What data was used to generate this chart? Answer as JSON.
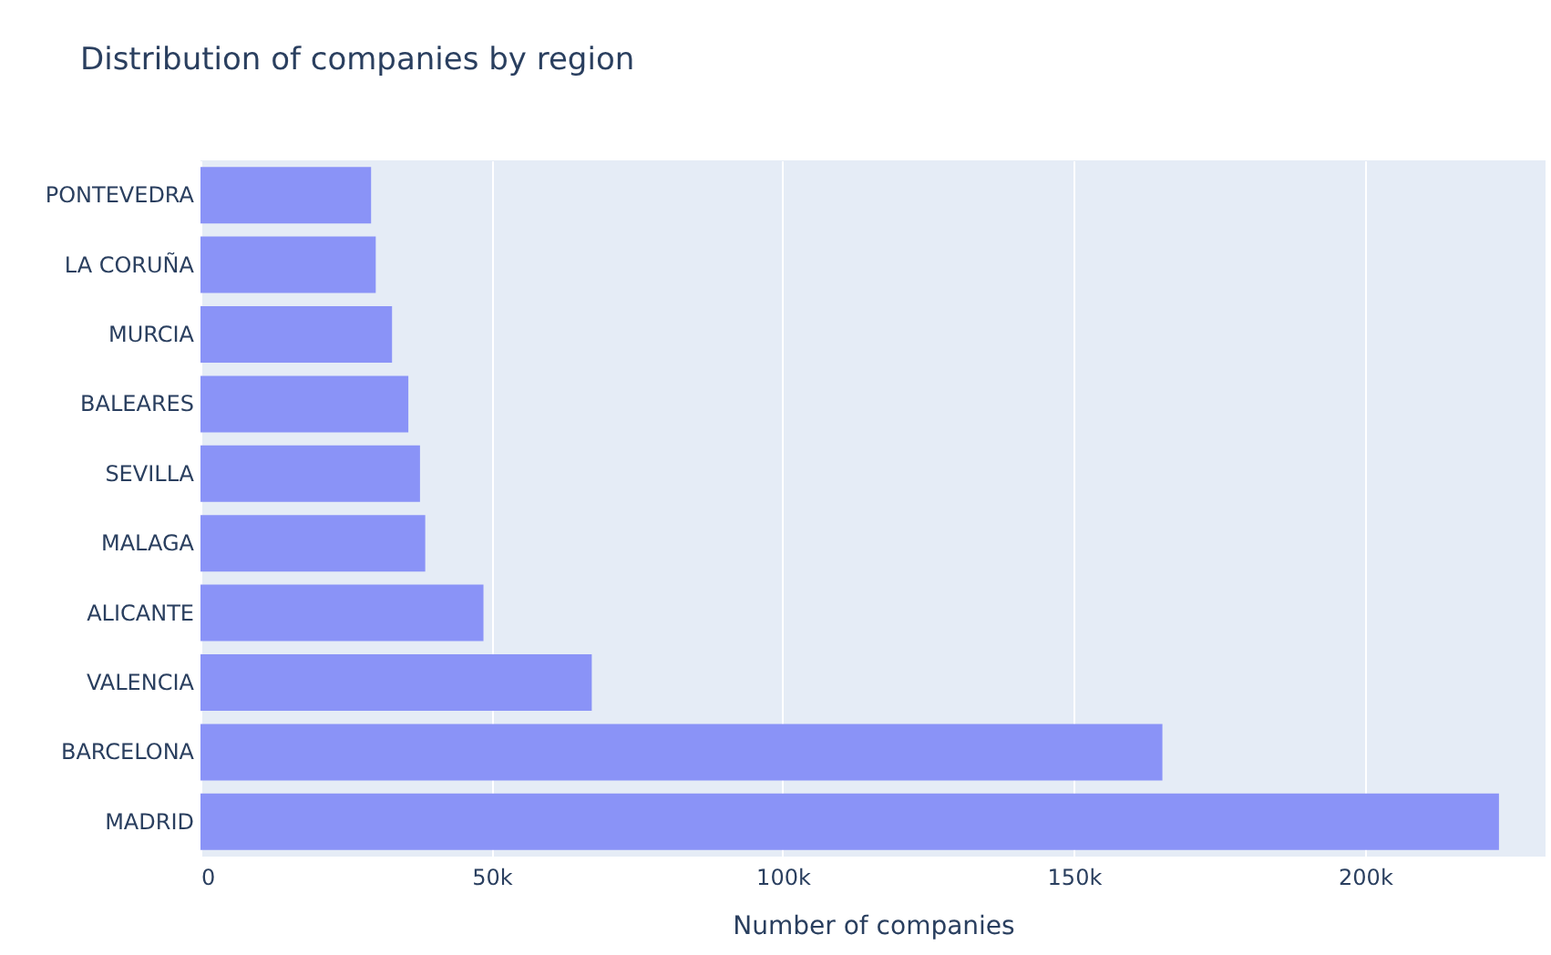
{
  "chart_data": {
    "type": "bar",
    "orientation": "horizontal",
    "title": "Distribution of companies by region",
    "xlabel": "Number of companies",
    "categories": [
      "PONTEVEDRA",
      "LA CORUÑA",
      "MURCIA",
      "BALEARES",
      "SEVILLA",
      "MALAGA",
      "ALICANTE",
      "VALENCIA",
      "BARCELONA",
      "MADRID"
    ],
    "values": [
      29300,
      30100,
      32900,
      35700,
      37700,
      38600,
      48600,
      67200,
      165200,
      223000
    ],
    "color": "#8a93f7",
    "xlim": [
      0,
      231000
    ],
    "xticks": [
      0,
      {
        "value": 50000,
        "label": "50k"
      },
      {
        "value": 100000,
        "label": "100k"
      },
      {
        "value": 150000,
        "label": "150k"
      },
      {
        "value": 200000,
        "label": "200k"
      }
    ],
    "grid": "x"
  }
}
